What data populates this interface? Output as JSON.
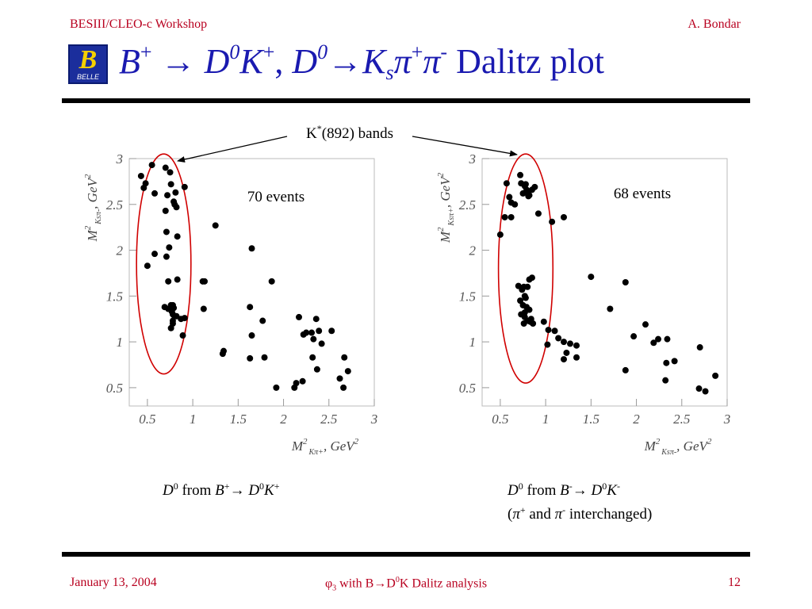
{
  "header": {
    "left": "BESIII/CLEO-c Workshop",
    "right": "A. Bondar"
  },
  "logo": {
    "letter": "B",
    "text": "BELLE"
  },
  "title": {
    "b": "B",
    "b_charge": "+",
    "arrow1": "→",
    "d1": "D",
    "d1_sup": "0",
    "k": "K",
    "k_charge": "+",
    "comma": ",",
    "d2": "D",
    "d2_sup": "0",
    "arrow2": "→",
    "ks": "K",
    "ks_sub": "s",
    "pi1": "π",
    "pi1_charge": "+",
    "pi2": "π",
    "pi2_charge": "-",
    "suffix": "Dalitz plot"
  },
  "annotation": {
    "pre": "K",
    "sup": "*",
    "post": "(892) bands"
  },
  "captions": {
    "left": {
      "d": "D",
      "d_sup": "0",
      "from": "from",
      "b": "B",
      "b_sup": "+",
      "arrow": "→",
      "d2": "D",
      "d2_sup": "0",
      "k": "K",
      "k_sup": "+"
    },
    "right": {
      "d": "D",
      "d_sup": "0",
      "from": "from",
      "b": "B",
      "b_sup": "-",
      "arrow": "→",
      "d2": "D",
      "d2_sup": "0",
      "k": "K",
      "k_sup": "-",
      "line2_open": "(",
      "pi_a": "π",
      "pi_a_sup": "+",
      "and": "and",
      "pi_b": "π",
      "pi_b_sup": "-",
      "line2_close": "interchanged)"
    }
  },
  "footer": {
    "left": "January 13, 2004",
    "center_phi": "φ",
    "center_sub": "3",
    "center_mid": "with B→D",
    "center_sup": "0",
    "center_end": "K Dalitz analysis",
    "right": "12"
  },
  "colors": {
    "accent_red": "#b8001f",
    "title_blue": "#1a1ab0",
    "band_ellipse": "#d00000"
  },
  "chart_data": [
    {
      "type": "scatter",
      "annotation": "70 events",
      "xlabel_main": "M",
      "xlabel_sup": "2",
      "xlabel_sub": "Kπ+",
      "xlabel_unit": ", GeV",
      "xlabel_unit_sup": "2",
      "ylabel_main": "M",
      "ylabel_sup": "2",
      "ylabel_sub": "Ksπ-",
      "ylabel_unit": ", GeV",
      "ylabel_unit_sup": "2",
      "xlim": [
        0.3,
        3.0
      ],
      "ylim": [
        0.3,
        3.0
      ],
      "xticks": [
        0.5,
        1,
        1.5,
        2,
        2.5,
        3
      ],
      "xticklabels": [
        "0.5",
        "1",
        "1.5",
        "2",
        "2.5",
        "3"
      ],
      "yticks": [
        0.5,
        1,
        1.5,
        2,
        2.5,
        3
      ],
      "yticklabels": [
        "0.5",
        "1",
        "1.5",
        "2",
        "2.5",
        "3"
      ],
      "band_ellipse": {
        "cx": 0.68,
        "cy": 1.85,
        "rx": 0.3,
        "ry": 1.2
      },
      "x": [
        0.55,
        0.43,
        0.48,
        0.46,
        0.7,
        0.75,
        0.81,
        0.76,
        0.72,
        0.58,
        0.91,
        0.7,
        0.79,
        0.82,
        0.71,
        0.8,
        0.83,
        0.58,
        0.71,
        0.5,
        0.74,
        0.83,
        0.73,
        0.69,
        0.76,
        0.78,
        0.79,
        0.73,
        0.77,
        0.78,
        0.8,
        0.82,
        0.87,
        0.76,
        0.78,
        0.78,
        0.89,
        0.91,
        1.25,
        1.13,
        1.11,
        1.12,
        1.65,
        1.63,
        1.87,
        1.65,
        1.77,
        1.63,
        1.79,
        1.34,
        1.33,
        2.17,
        2.25,
        2.22,
        2.31,
        2.36,
        2.42,
        2.32,
        2.37,
        2.39,
        2.33,
        2.53,
        2.21,
        2.14,
        2.12,
        1.92,
        2.67,
        2.62,
        2.71,
        2.66
      ],
      "y": [
        2.93,
        2.81,
        2.73,
        2.68,
        2.9,
        2.85,
        2.63,
        2.72,
        2.6,
        2.62,
        2.69,
        2.43,
        2.53,
        2.47,
        2.2,
        2.5,
        2.15,
        1.96,
        1.93,
        1.83,
        2.03,
        1.68,
        1.66,
        1.38,
        1.4,
        1.4,
        1.37,
        1.36,
        1.33,
        1.3,
        1.28,
        1.28,
        1.25,
        1.15,
        1.2,
        1.23,
        1.07,
        1.26,
        2.27,
        1.66,
        1.66,
        1.36,
        2.02,
        1.38,
        1.66,
        1.07,
        1.23,
        0.82,
        0.83,
        0.9,
        0.87,
        1.27,
        1.1,
        1.08,
        1.1,
        1.25,
        0.98,
        0.83,
        0.7,
        1.12,
        1.03,
        1.12,
        0.57,
        0.55,
        0.5,
        0.5,
        0.83,
        0.6,
        0.68,
        0.5
      ]
    },
    {
      "type": "scatter",
      "annotation": "68 events",
      "xlabel_main": "M",
      "xlabel_sup": "2",
      "xlabel_sub": "Ksπ-",
      "xlabel_unit": ", GeV",
      "xlabel_unit_sup": "2",
      "ylabel_main": "M",
      "ylabel_sup": "2",
      "ylabel_sub": "Ksπ+",
      "ylabel_unit": ", GeV",
      "ylabel_unit_sup": "2",
      "xlim": [
        0.3,
        3.0
      ],
      "ylim": [
        0.3,
        3.0
      ],
      "xticks": [
        0.5,
        1,
        1.5,
        2,
        2.5,
        3
      ],
      "xticklabels": [
        "0.5",
        "1",
        "1.5",
        "2",
        "2.5",
        "3"
      ],
      "yticks": [
        0.5,
        1,
        1.5,
        2,
        2.5,
        3
      ],
      "yticklabels": [
        "0.5",
        "1",
        "1.5",
        "2",
        "2.5",
        "3"
      ],
      "band_ellipse": {
        "cx": 0.78,
        "cy": 1.8,
        "rx": 0.3,
        "ry": 1.25
      },
      "x": [
        0.5,
        0.57,
        0.6,
        0.62,
        0.66,
        0.72,
        0.73,
        0.77,
        0.78,
        0.79,
        0.8,
        0.82,
        0.85,
        0.75,
        0.81,
        0.88,
        0.92,
        0.55,
        0.62,
        0.7,
        0.76,
        0.74,
        0.77,
        0.78,
        0.72,
        0.75,
        0.79,
        0.73,
        0.77,
        0.82,
        0.77,
        0.8,
        0.84,
        0.76,
        0.86,
        0.83,
        0.82,
        0.8,
        0.85,
        1.1,
        0.98,
        1.03,
        1.02,
        1.14,
        1.2,
        1.27,
        1.34,
        1.34,
        1.2,
        1.23,
        1.2,
        1.07,
        1.5,
        1.71,
        1.88,
        1.88,
        1.97,
        2.1,
        2.19,
        2.24,
        2.34,
        2.33,
        2.42,
        2.32,
        2.7,
        2.76,
        2.87,
        2.69
      ],
      "y": [
        2.17,
        2.73,
        2.58,
        2.52,
        2.5,
        2.82,
        2.73,
        2.7,
        2.72,
        2.66,
        2.63,
        2.6,
        2.66,
        2.62,
        2.59,
        2.69,
        2.4,
        2.36,
        2.36,
        1.61,
        1.6,
        1.57,
        1.5,
        1.48,
        1.45,
        1.4,
        1.38,
        1.3,
        1.32,
        1.35,
        1.27,
        1.23,
        1.25,
        1.2,
        1.2,
        1.22,
        1.68,
        1.6,
        1.7,
        1.12,
        1.22,
        1.13,
        0.97,
        1.04,
        1.0,
        0.98,
        0.96,
        0.83,
        0.81,
        0.88,
        2.36,
        2.31,
        1.71,
        1.36,
        1.65,
        0.69,
        1.06,
        1.19,
        0.99,
        1.03,
        1.03,
        0.77,
        0.79,
        0.58,
        0.94,
        0.46,
        0.63,
        0.49
      ]
    }
  ]
}
